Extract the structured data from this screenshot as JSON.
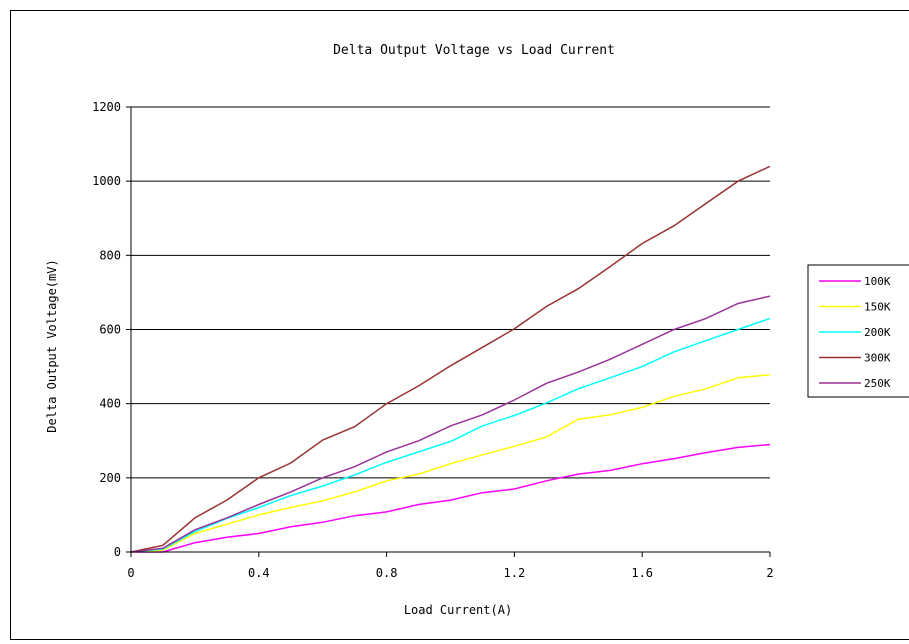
{
  "chart_data": {
    "type": "line",
    "title": "Delta Output Voltage vs Load Current",
    "xlabel": "Load Current(A)",
    "ylabel": "Delta Output Voltage(mV)",
    "xlim": [
      0,
      2
    ],
    "ylim": [
      0,
      1200
    ],
    "xticks": [
      0,
      0.4,
      0.8,
      1.2,
      1.6,
      2
    ],
    "xtick_labels": [
      "0",
      "0.4",
      "0.8",
      "1.2",
      "1.6",
      "2"
    ],
    "yticks": [
      0,
      200,
      400,
      600,
      800,
      1000,
      1200
    ],
    "ytick_labels": [
      "0",
      "200",
      "400",
      "600",
      "800",
      "1000",
      "1200"
    ],
    "grid": "horizontal",
    "legend_position": "right",
    "x": [
      0,
      0.1,
      0.2,
      0.3,
      0.4,
      0.5,
      0.6,
      0.7,
      0.8,
      0.9,
      1.0,
      1.1,
      1.2,
      1.3,
      1.4,
      1.5,
      1.6,
      1.7,
      1.8,
      1.9,
      2.0
    ],
    "series": [
      {
        "name": "100K",
        "color": "#ff00ff",
        "values": [
          0,
          0,
          25,
          40,
          50,
          68,
          80,
          98,
          108,
          128,
          140,
          160,
          170,
          192,
          210,
          220,
          238,
          252,
          268,
          282,
          290
        ]
      },
      {
        "name": "150K",
        "color": "#ffff00",
        "values": [
          0,
          5,
          50,
          75,
          100,
          120,
          138,
          162,
          192,
          210,
          238,
          262,
          285,
          310,
          358,
          370,
          390,
          420,
          440,
          470,
          478
        ]
      },
      {
        "name": "200K",
        "color": "#00ffff",
        "values": [
          0,
          8,
          55,
          90,
          120,
          152,
          178,
          208,
          242,
          270,
          298,
          340,
          368,
          402,
          440,
          470,
          500,
          540,
          570,
          600,
          630
        ]
      },
      {
        "name": "300K",
        "color": "#993333",
        "values": [
          0,
          18,
          92,
          140,
          200,
          240,
          302,
          338,
          400,
          448,
          502,
          552,
          602,
          662,
          710,
          770,
          832,
          880,
          940,
          1000,
          1040
        ]
      },
      {
        "name": "250K",
        "color": "#993399",
        "values": [
          0,
          10,
          60,
          92,
          128,
          162,
          200,
          230,
          270,
          300,
          340,
          370,
          410,
          455,
          485,
          520,
          560,
          600,
          630,
          670,
          690
        ]
      }
    ]
  }
}
